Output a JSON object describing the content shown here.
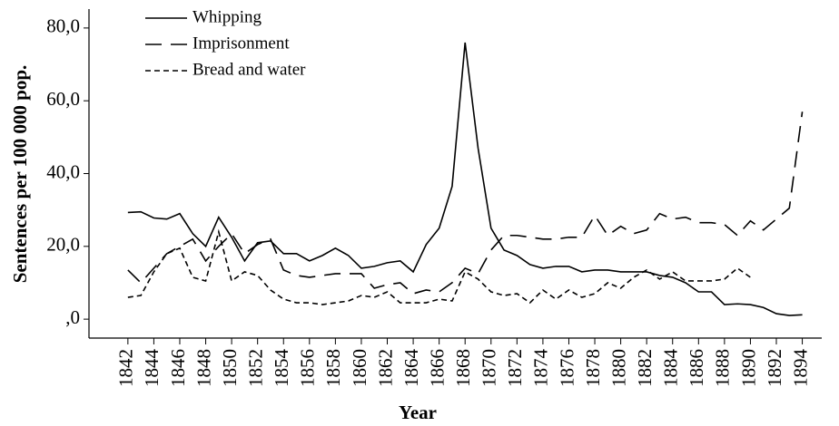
{
  "chart_data": {
    "type": "line",
    "xlabel": "Year",
    "ylabel": "Sentences per 100 000 pop.",
    "x": [
      1842,
      1843,
      1844,
      1845,
      1846,
      1847,
      1848,
      1849,
      1850,
      1851,
      1852,
      1853,
      1854,
      1855,
      1856,
      1857,
      1858,
      1859,
      1860,
      1861,
      1862,
      1863,
      1864,
      1865,
      1866,
      1867,
      1868,
      1869,
      1870,
      1871,
      1872,
      1873,
      1874,
      1875,
      1876,
      1877,
      1878,
      1879,
      1880,
      1881,
      1882,
      1883,
      1884,
      1885,
      1886,
      1887,
      1888,
      1889,
      1890,
      1891,
      1892,
      1893,
      1894
    ],
    "series": [
      {
        "name": "Whipping",
        "color": "#000000",
        "dash": "solid",
        "values": [
          29.3,
          29.5,
          27.8,
          27.5,
          29,
          23.5,
          20,
          28,
          22.5,
          16,
          21,
          21.5,
          18,
          18,
          16,
          17.5,
          19.5,
          17.5,
          14,
          14.5,
          15.5,
          16,
          13,
          20.5,
          25,
          36.5,
          76,
          47,
          25,
          19,
          17.5,
          15,
          14,
          14.5,
          14.5,
          13,
          13.5,
          13.5,
          13,
          13,
          13,
          12,
          11.5,
          10,
          7.5,
          7.5,
          4,
          4.2,
          4,
          3.2,
          1.5,
          1,
          1.2
        ]
      },
      {
        "name": "Imprisonment",
        "color": "#000000",
        "dash": "long",
        "values": [
          13.5,
          10,
          14,
          18,
          20,
          22,
          16,
          20,
          23.5,
          18,
          20.5,
          22,
          13.5,
          12,
          11.5,
          12,
          12.5,
          12.5,
          12.5,
          8.5,
          9.5,
          10,
          7,
          8,
          7.5,
          10,
          14,
          12.5,
          19,
          23,
          23,
          22.5,
          22,
          22,
          22.5,
          22.5,
          28.5,
          23,
          25.5,
          23.5,
          24.5,
          29,
          27.5,
          28,
          26.5,
          26.5,
          26,
          23,
          27,
          24.5,
          27.5,
          30.5,
          57
        ]
      },
      {
        "name": "Bread and water",
        "color": "#000000",
        "dash": "short",
        "values": [
          6,
          6.5,
          13,
          18,
          19.5,
          11.5,
          10.5,
          24,
          10.5,
          13,
          12,
          8,
          5.5,
          4.5,
          4.5,
          4,
          4.5,
          5,
          6.5,
          6,
          7.5,
          4.5,
          4.5,
          4.5,
          5.5,
          5,
          13,
          11,
          7.5,
          6.5,
          7,
          4.5,
          8,
          5.5,
          8,
          6,
          7,
          10,
          8.5,
          11.5,
          13.5,
          11,
          13,
          10.5,
          10.5,
          10.5,
          11,
          14,
          11.5,
          null,
          null,
          null,
          null
        ]
      }
    ],
    "xlim": [
      1839,
      1895.5
    ],
    "xticks": [
      1842,
      1844,
      1846,
      1848,
      1850,
      1852,
      1854,
      1856,
      1858,
      1860,
      1862,
      1864,
      1866,
      1868,
      1870,
      1872,
      1874,
      1876,
      1878,
      1880,
      1882,
      1884,
      1886,
      1888,
      1890,
      1892,
      1894
    ],
    "ylim": [
      -5.2,
      85.2
    ],
    "yticks": [
      {
        "value": 0,
        "label": ",0"
      },
      {
        "value": 20,
        "label": "20,0"
      },
      {
        "value": 40,
        "label": "40,0"
      },
      {
        "value": 60,
        "label": "60,0"
      },
      {
        "value": 80,
        "label": "80,0"
      }
    ],
    "legend": "upper left"
  }
}
